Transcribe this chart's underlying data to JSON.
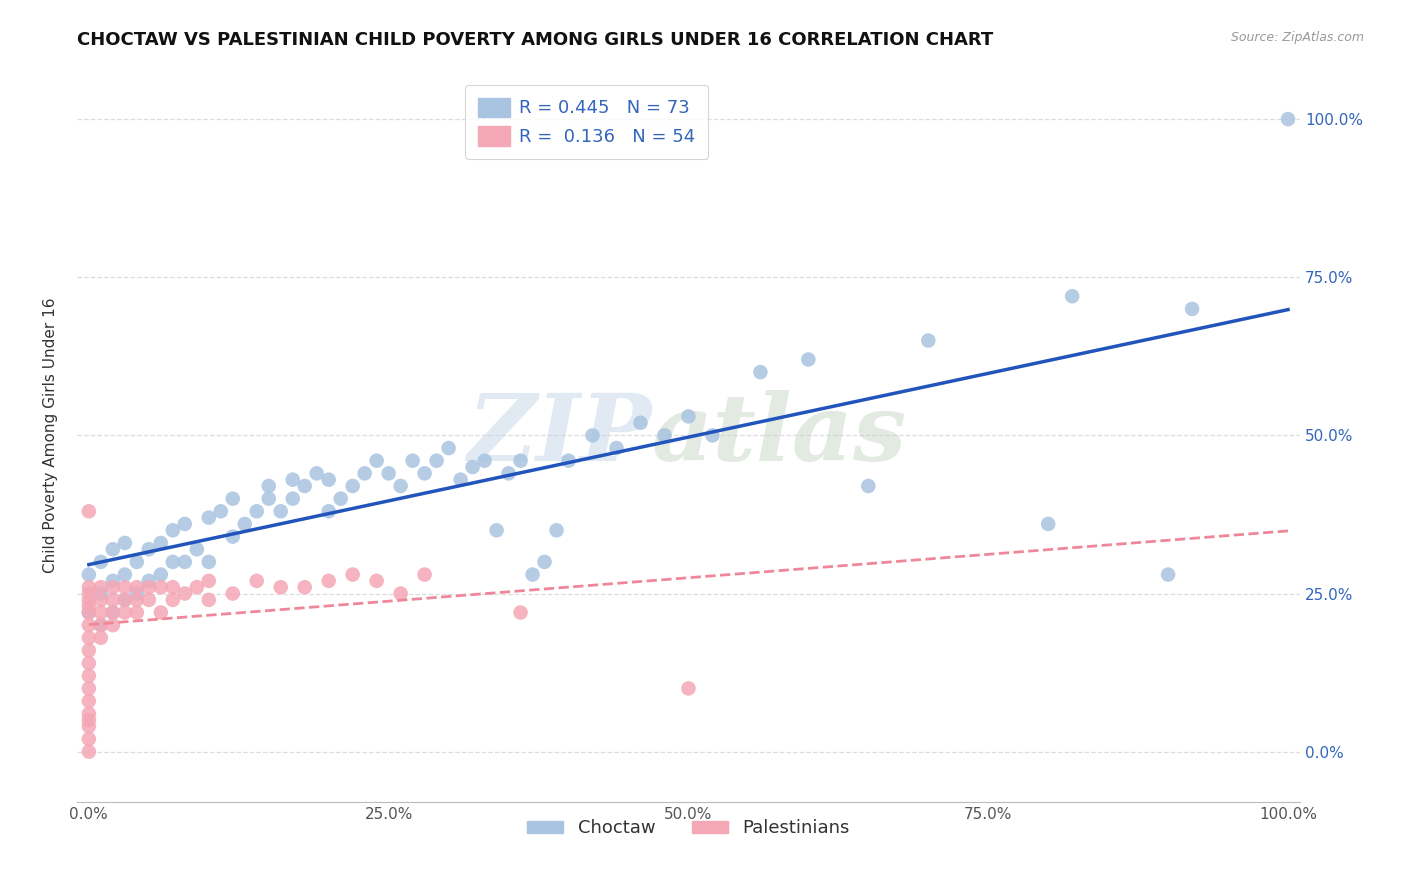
{
  "title": "CHOCTAW VS PALESTINIAN CHILD POVERTY AMONG GIRLS UNDER 16 CORRELATION CHART",
  "source": "Source: ZipAtlas.com",
  "ylabel": "Child Poverty Among Girls Under 16",
  "xlabel": "",
  "xlim": [
    -0.01,
    1.01
  ],
  "ylim": [
    -0.08,
    1.08
  ],
  "watermark_zip": "ZIP",
  "watermark_atlas": "atlas",
  "choctaw_R": 0.445,
  "choctaw_N": 73,
  "palestinian_R": 0.136,
  "palestinian_N": 54,
  "choctaw_color": "#A8C4E0",
  "choctaw_line_color": "#2255BB",
  "choctaw_line_color2": "#AABBDD",
  "palestinian_color": "#F4A7B5",
  "palestinian_line_color": "#EE8899",
  "grid_color": "#DDDDDD",
  "background_color": "#FFFFFF",
  "choctaw_x": [
    0.0,
    0.0,
    0.01,
    0.01,
    0.01,
    0.02,
    0.02,
    0.02,
    0.03,
    0.03,
    0.03,
    0.04,
    0.04,
    0.05,
    0.05,
    0.06,
    0.06,
    0.07,
    0.07,
    0.08,
    0.08,
    0.09,
    0.1,
    0.1,
    0.11,
    0.12,
    0.12,
    0.13,
    0.14,
    0.15,
    0.15,
    0.16,
    0.17,
    0.17,
    0.18,
    0.19,
    0.2,
    0.2,
    0.21,
    0.22,
    0.23,
    0.24,
    0.25,
    0.26,
    0.27,
    0.28,
    0.29,
    0.3,
    0.31,
    0.32,
    0.33,
    0.34,
    0.35,
    0.36,
    0.37,
    0.38,
    0.39,
    0.4,
    0.42,
    0.44,
    0.46,
    0.48,
    0.5,
    0.52,
    0.56,
    0.6,
    0.65,
    0.7,
    0.8,
    0.82,
    0.9,
    0.92,
    1.0
  ],
  "choctaw_y": [
    0.22,
    0.28,
    0.2,
    0.25,
    0.3,
    0.22,
    0.27,
    0.32,
    0.24,
    0.28,
    0.33,
    0.25,
    0.3,
    0.27,
    0.32,
    0.28,
    0.33,
    0.3,
    0.35,
    0.3,
    0.36,
    0.32,
    0.3,
    0.37,
    0.38,
    0.34,
    0.4,
    0.36,
    0.38,
    0.4,
    0.42,
    0.38,
    0.4,
    0.43,
    0.42,
    0.44,
    0.38,
    0.43,
    0.4,
    0.42,
    0.44,
    0.46,
    0.44,
    0.42,
    0.46,
    0.44,
    0.46,
    0.48,
    0.43,
    0.45,
    0.46,
    0.35,
    0.44,
    0.46,
    0.28,
    0.3,
    0.35,
    0.46,
    0.5,
    0.48,
    0.52,
    0.5,
    0.53,
    0.5,
    0.6,
    0.62,
    0.42,
    0.65,
    0.36,
    0.72,
    0.28,
    0.7,
    1.0
  ],
  "palestinian_x": [
    0.0,
    0.0,
    0.0,
    0.0,
    0.0,
    0.0,
    0.0,
    0.0,
    0.0,
    0.0,
    0.0,
    0.0,
    0.0,
    0.0,
    0.0,
    0.0,
    0.0,
    0.0,
    0.01,
    0.01,
    0.01,
    0.01,
    0.01,
    0.02,
    0.02,
    0.02,
    0.02,
    0.03,
    0.03,
    0.03,
    0.04,
    0.04,
    0.04,
    0.05,
    0.05,
    0.06,
    0.06,
    0.07,
    0.07,
    0.08,
    0.09,
    0.1,
    0.1,
    0.12,
    0.14,
    0.16,
    0.18,
    0.2,
    0.22,
    0.24,
    0.26,
    0.28,
    0.36,
    0.5
  ],
  "palestinian_y": [
    0.0,
    0.02,
    0.04,
    0.05,
    0.06,
    0.08,
    0.1,
    0.12,
    0.14,
    0.16,
    0.18,
    0.2,
    0.22,
    0.23,
    0.24,
    0.25,
    0.26,
    0.38,
    0.18,
    0.2,
    0.22,
    0.24,
    0.26,
    0.2,
    0.22,
    0.24,
    0.26,
    0.22,
    0.24,
    0.26,
    0.22,
    0.24,
    0.26,
    0.24,
    0.26,
    0.22,
    0.26,
    0.24,
    0.26,
    0.25,
    0.26,
    0.24,
    0.27,
    0.25,
    0.27,
    0.26,
    0.26,
    0.27,
    0.28,
    0.27,
    0.25,
    0.28,
    0.22,
    0.1
  ],
  "xtick_labels": [
    "0.0%",
    "25.0%",
    "50.0%",
    "75.0%",
    "100.0%"
  ],
  "xtick_positions": [
    0.0,
    0.25,
    0.5,
    0.75,
    1.0
  ],
  "ytick_labels_left": [
    "",
    "",
    "",
    "",
    ""
  ],
  "ytick_labels_right": [
    "0.0%",
    "25.0%",
    "50.0%",
    "75.0%",
    "100.0%"
  ],
  "ytick_positions": [
    0.0,
    0.25,
    0.5,
    0.75,
    1.0
  ],
  "legend_labels_bottom": [
    "Choctaw",
    "Palestinians"
  ],
  "title_fontsize": 13,
  "axis_label_fontsize": 11,
  "tick_fontsize": 11,
  "legend_fontsize": 13
}
